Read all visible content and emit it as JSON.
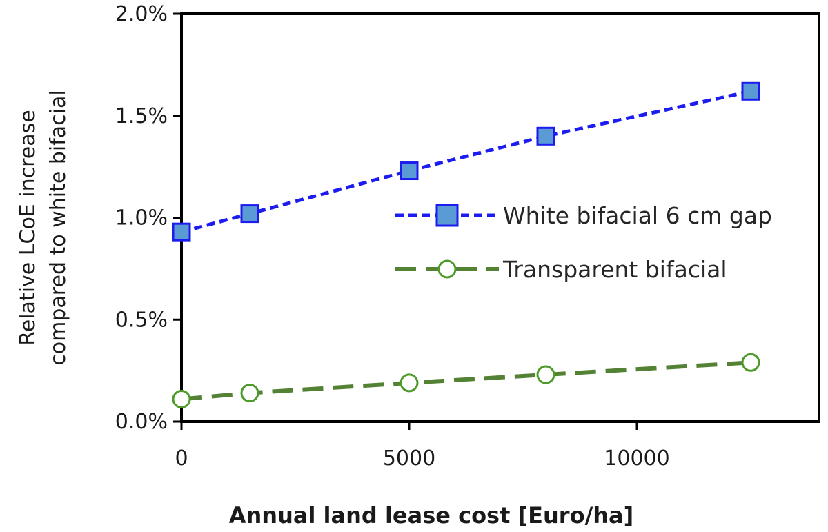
{
  "chart_data": {
    "type": "line",
    "xlabel": "Annual land lease cost [Euro/ha]",
    "ylabel_line1": "Relative LCoE increase",
    "ylabel_line2": "compared to white bifacial",
    "xlim": [
      0,
      14000
    ],
    "ylim": [
      0,
      0.02
    ],
    "x_ticks": [
      0,
      5000,
      10000
    ],
    "x_tick_labels": [
      "0",
      "5000",
      "10000"
    ],
    "y_ticks": [
      0,
      0.005,
      0.01,
      0.015,
      0.02
    ],
    "y_tick_labels": [
      "0.0%",
      "0.5%",
      "1.0%",
      "1.5%",
      "2.0%"
    ],
    "grid": false,
    "legend_position": "center-right",
    "series": [
      {
        "name": "White bifacial 6 cm gap",
        "marker": "square",
        "line_style": "short-dash",
        "line_color": "#1c1cf0",
        "marker_fill": "#5b9bd5",
        "marker_edge": "#1c1cf0",
        "x": [
          0,
          1500,
          5000,
          8000,
          12500
        ],
        "y": [
          0.0093,
          0.0102,
          0.0123,
          0.014,
          0.0162
        ]
      },
      {
        "name": "Transparent bifacial",
        "marker": "open-circle",
        "line_style": "long-dash",
        "line_color": "#548235",
        "marker_fill": "#ffffff",
        "marker_edge": "#4e9a2a",
        "x": [
          0,
          1500,
          5000,
          8000,
          12500
        ],
        "y": [
          0.0011,
          0.0014,
          0.0019,
          0.0023,
          0.0029
        ]
      }
    ]
  }
}
